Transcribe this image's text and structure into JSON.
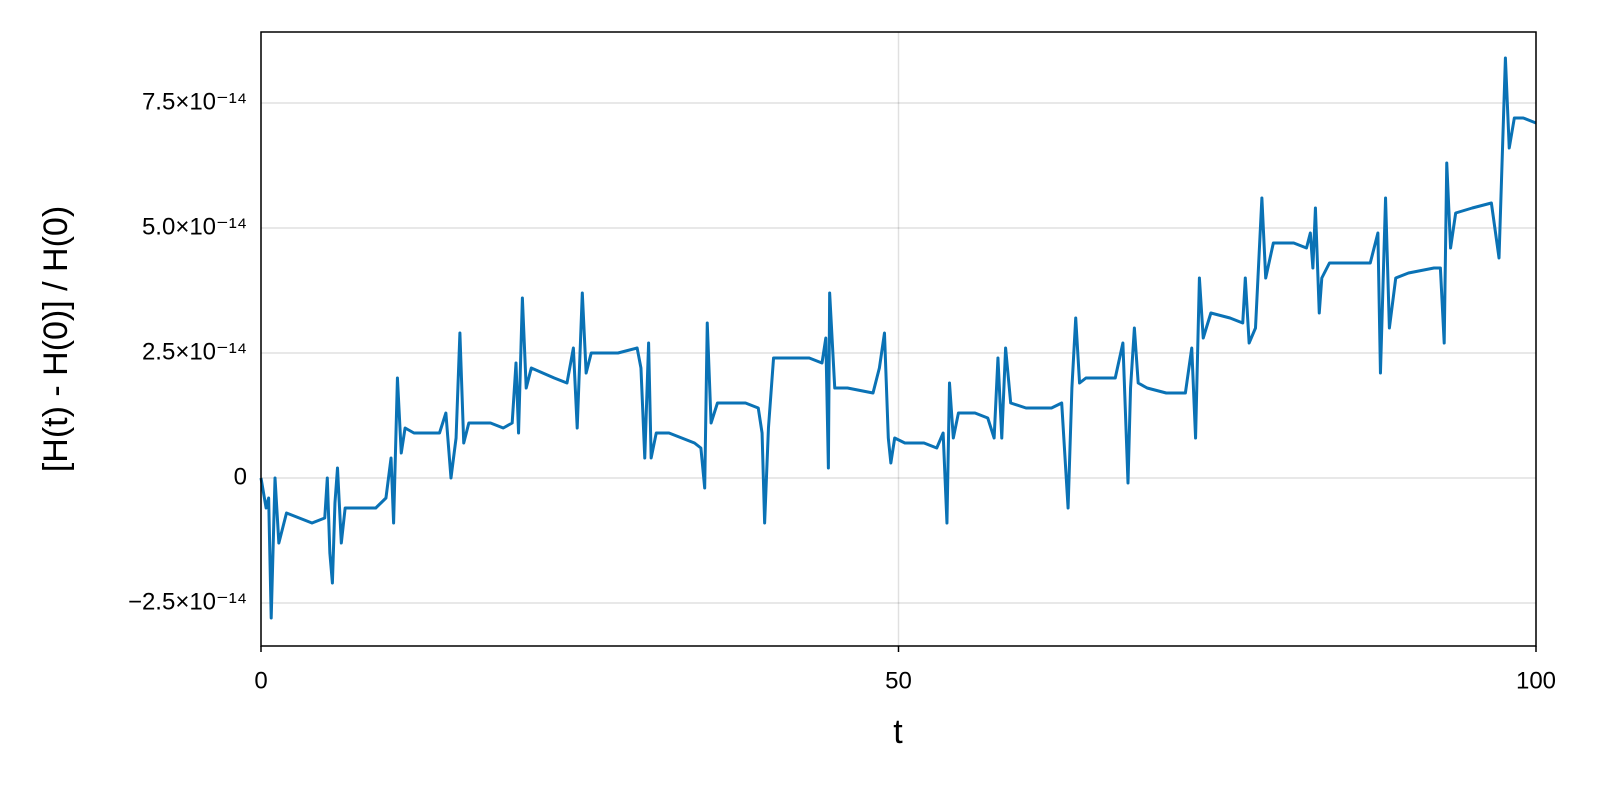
{
  "chart_data": {
    "type": "line",
    "xlabel": "t",
    "ylabel": "[H(t) - H(0)] / H(0)",
    "xlim": [
      0,
      100
    ],
    "xticks": [
      0,
      50,
      100
    ],
    "ylim": [
      -3.36e-14,
      8.92e-14
    ],
    "yticks": [
      {
        "value": -2.5e-14,
        "label": "−2.5×10⁻¹⁴"
      },
      0,
      {
        "value": 2.5e-14,
        "label": "2.5×10⁻¹⁴"
      },
      {
        "value": 5e-14,
        "label": "5.0×10⁻¹⁴"
      },
      {
        "value": 7.5e-14,
        "label": "7.5×10⁻¹⁴"
      }
    ],
    "grid": true,
    "series": [
      {
        "color": "#0a72b5",
        "x": [
          0,
          0.4,
          0.6,
          0.8,
          1.1,
          1.4,
          2,
          3,
          4,
          5,
          5.2,
          5.4,
          5.6,
          5.8,
          6,
          6.3,
          6.6,
          8,
          9,
          9.8,
          10.2,
          10.4,
          10.7,
          11,
          11.3,
          12,
          13,
          14,
          14.5,
          14.9,
          15.3,
          15.6,
          15.9,
          16.3,
          18,
          19,
          19.7,
          20,
          20.2,
          20.5,
          20.8,
          21.2,
          23,
          24,
          24.5,
          24.8,
          25.2,
          25.5,
          25.9,
          28,
          29.5,
          29.8,
          30.1,
          30.4,
          30.6,
          31,
          32,
          33,
          34,
          34.5,
          34.8,
          35,
          35.3,
          35.8,
          38,
          39,
          39.3,
          39.5,
          39.8,
          40.2,
          41,
          43,
          44,
          44.3,
          44.5,
          44.6,
          45,
          46,
          48,
          48.5,
          48.9,
          49.2,
          49.4,
          49.7,
          50.5,
          52,
          53,
          53.5,
          53.8,
          54,
          54.3,
          54.7,
          56,
          57,
          57.5,
          57.8,
          58.1,
          58.4,
          58.8,
          60,
          62,
          62.8,
          63.3,
          63.6,
          63.9,
          64.2,
          64.7,
          66,
          67,
          67.6,
          68,
          68.2,
          68.5,
          68.8,
          69.5,
          71,
          72.5,
          73,
          73.3,
          73.6,
          73.9,
          74.5,
          76,
          77,
          77.2,
          77.5,
          78,
          78.5,
          78.8,
          79.4,
          81,
          82,
          82.3,
          82.5,
          82.7,
          83,
          83.2,
          83.8,
          86,
          87,
          87.6,
          87.8,
          88.2,
          88.5,
          89,
          90,
          92,
          92.5,
          92.8,
          93,
          93.3,
          93.7,
          95,
          96.5,
          97.1,
          97.6,
          97.9,
          98.3,
          99,
          100
        ],
        "values": [
          0,
          -6e-15,
          -4e-15,
          -2.8e-14,
          0,
          -1.3e-14,
          -7e-15,
          -8e-15,
          -9e-15,
          -8e-15,
          0,
          -1.5e-14,
          -2.1e-14,
          -5e-15,
          2e-15,
          -1.3e-14,
          -6e-15,
          -6e-15,
          -6e-15,
          -4e-15,
          4e-15,
          -9e-15,
          2e-14,
          5e-15,
          1e-14,
          9e-15,
          9e-15,
          9e-15,
          1.3e-14,
          0,
          8e-15,
          2.9e-14,
          7e-15,
          1.1e-14,
          1.1e-14,
          1e-14,
          1.1e-14,
          2.3e-14,
          9e-15,
          3.6e-14,
          1.8e-14,
          2.2e-14,
          2e-14,
          1.9e-14,
          2.6e-14,
          1e-14,
          3.7e-14,
          2.1e-14,
          2.5e-14,
          2.5e-14,
          2.6e-14,
          2.2e-14,
          4e-15,
          2.7e-14,
          4e-15,
          9e-15,
          9e-15,
          8e-15,
          7e-15,
          6e-15,
          -2e-15,
          3.1e-14,
          1.1e-14,
          1.5e-14,
          1.5e-14,
          1.4e-14,
          9e-15,
          -9e-15,
          1e-14,
          2.4e-14,
          2.4e-14,
          2.4e-14,
          2.3e-14,
          2.8e-14,
          2e-15,
          3.7e-14,
          1.8e-14,
          1.8e-14,
          1.7e-14,
          2.2e-14,
          2.9e-14,
          8e-15,
          3e-15,
          8e-15,
          7e-15,
          7e-15,
          6e-15,
          9e-15,
          -9e-15,
          1.9e-14,
          8e-15,
          1.3e-14,
          1.3e-14,
          1.2e-14,
          8e-15,
          2.4e-14,
          8e-15,
          2.6e-14,
          1.5e-14,
          1.4e-14,
          1.4e-14,
          1.5e-14,
          -6e-15,
          1.8e-14,
          3.2e-14,
          1.9e-14,
          2e-14,
          2e-14,
          2e-14,
          2.7e-14,
          -1e-15,
          1.8e-14,
          3e-14,
          1.9e-14,
          1.8e-14,
          1.7e-14,
          1.7e-14,
          2.6e-14,
          8e-15,
          4e-14,
          2.8e-14,
          3.3e-14,
          3.2e-14,
          3.1e-14,
          4e-14,
          2.7e-14,
          3e-14,
          5.6e-14,
          4e-14,
          4.7e-14,
          4.7e-14,
          4.6e-14,
          4.9e-14,
          4.2e-14,
          5.4e-14,
          3.3e-14,
          4e-14,
          4.3e-14,
          4.3e-14,
          4.3e-14,
          4.9e-14,
          2.1e-14,
          5.6e-14,
          3e-14,
          4e-14,
          4.1e-14,
          4.2e-14,
          4.2e-14,
          2.7e-14,
          6.3e-14,
          4.6e-14,
          5.3e-14,
          5.4e-14,
          5.5e-14,
          4.4e-14,
          8.4e-14,
          6.6e-14,
          7.2e-14,
          7.2e-14,
          7.1e-14
        ]
      }
    ]
  }
}
